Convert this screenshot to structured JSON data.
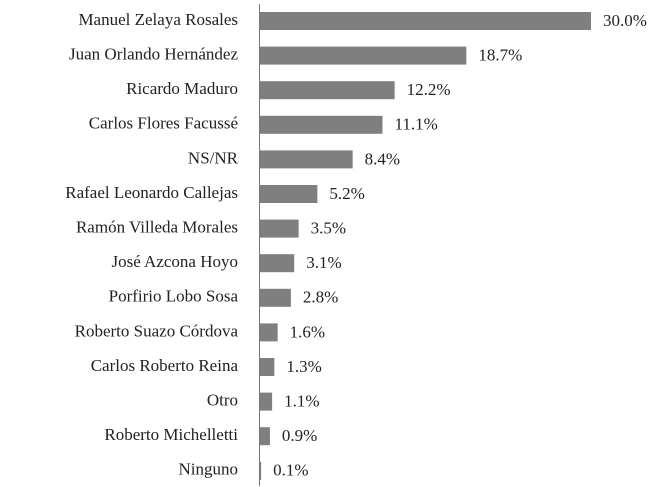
{
  "chart_data": {
    "type": "bar",
    "orientation": "horizontal",
    "categories": [
      "Manuel Zelaya Rosales",
      "Juan Orlando Hernández",
      "Ricardo Maduro",
      "Carlos Flores Facussé",
      "NS/NR",
      "Rafael Leonardo Callejas",
      "Ramón Villeda Morales",
      "José Azcona Hoyo",
      "Porfirio Lobo Sosa",
      "Roberto Suazo Córdova",
      "Carlos Roberto Reina",
      "Otro",
      "Roberto Michelletti",
      "Ninguno"
    ],
    "values": [
      30.0,
      18.7,
      12.2,
      11.1,
      8.4,
      5.2,
      3.5,
      3.1,
      2.8,
      1.6,
      1.3,
      1.1,
      0.9,
      0.1
    ],
    "value_labels": [
      "30.0%",
      "18.7%",
      "12.2%",
      "11.1%",
      "8.4%",
      "5.2%",
      "3.5%",
      "3.1%",
      "2.8%",
      "1.6%",
      "1.3%",
      "1.1%",
      "0.9%",
      "0.1%"
    ],
    "color": "#7f7f7f"
  }
}
